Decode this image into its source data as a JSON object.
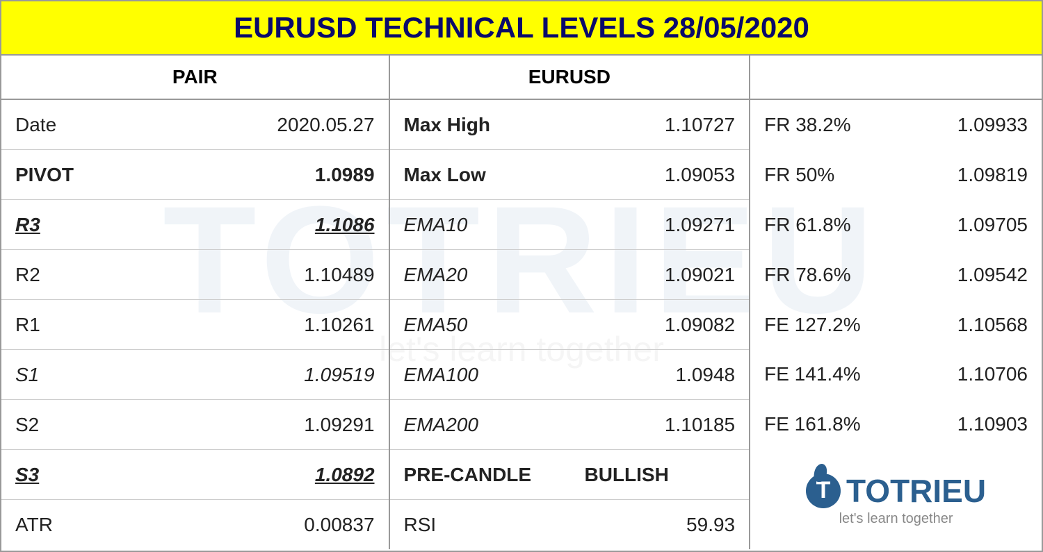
{
  "title": "EURUSD TECHNICAL LEVELS 28/05/2020",
  "headers": {
    "pair": "PAIR",
    "pair_value": "EURUSD"
  },
  "col1": [
    {
      "label": "Date",
      "value": "2020.05.27",
      "style": ""
    },
    {
      "label": "PIVOT",
      "value": "1.0989",
      "style": "bold"
    },
    {
      "label": "R3",
      "value": "1.1086",
      "style": "bold italic underline"
    },
    {
      "label": "R2",
      "value": "1.10489",
      "style": ""
    },
    {
      "label": "R1",
      "value": "1.10261",
      "style": ""
    },
    {
      "label": "S1",
      "value": "1.09519",
      "style": "italic",
      "label_style": "italic"
    },
    {
      "label": "S2",
      "value": "1.09291",
      "style": ""
    },
    {
      "label": "S3",
      "value": "1.0892",
      "style": "bold italic underline"
    },
    {
      "label": "ATR",
      "value": "0.00837",
      "style": ""
    }
  ],
  "col2": [
    {
      "label": "Max High",
      "value": "1.10727",
      "label_style": "bold"
    },
    {
      "label": "Max Low",
      "value": "1.09053",
      "label_style": "bold"
    },
    {
      "label": "EMA10",
      "value": "1.09271",
      "label_style": "italic"
    },
    {
      "label": "EMA20",
      "value": "1.09021",
      "label_style": "italic"
    },
    {
      "label": "EMA50",
      "value": "1.09082",
      "label_style": "italic"
    },
    {
      "label": "EMA100",
      "value": "1.0948",
      "label_style": "italic"
    },
    {
      "label": "EMA200",
      "value": "1.10185",
      "label_style": "italic"
    },
    {
      "label": "PRE-CANDLE",
      "value": "BULLISH",
      "label_style": "bold",
      "value_style": "bold",
      "value_align": "left"
    },
    {
      "label": "RSI",
      "value": "59.93",
      "label_style": ""
    }
  ],
  "col3": [
    {
      "label": "FR 38.2%",
      "value": "1.09933"
    },
    {
      "label": "FR 50%",
      "value": "1.09819"
    },
    {
      "label": "FR 61.8%",
      "value": "1.09705"
    },
    {
      "label": "FR 78.6%",
      "value": "1.09542"
    },
    {
      "label": "FE 127.2%",
      "value": "1.10568"
    },
    {
      "label": "FE 141.4%",
      "value": "1.10706"
    },
    {
      "label": "FE 161.8%",
      "value": "1.10903"
    }
  ],
  "logo": {
    "text": "TOTRIEU",
    "tagline": "let's learn together"
  },
  "watermark": {
    "text": "TOTRIEU",
    "tagline": "let's learn together"
  },
  "colors": {
    "title_bg": "#ffff00",
    "title_text": "#0a0a6b",
    "border": "#999999",
    "text": "#222222",
    "logo": "#2b5f8f",
    "logo_sub": "#888888"
  }
}
